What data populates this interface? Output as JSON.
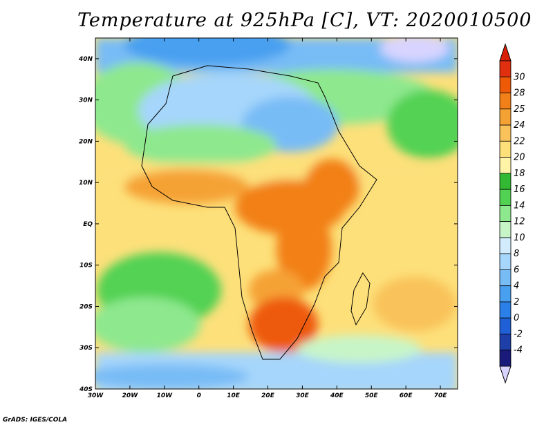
{
  "title": "Temperature at 925hPa [C], VT: 2020010500",
  "credit": "GrADS: IGES/COLA",
  "map": {
    "lon_range": [
      -30,
      75
    ],
    "lat_range": [
      -40,
      45
    ],
    "lon_ticks": [
      {
        "value": -30,
        "label": "30W"
      },
      {
        "value": -20,
        "label": "20W"
      },
      {
        "value": -10,
        "label": "10W"
      },
      {
        "value": 0,
        "label": "0"
      },
      {
        "value": 10,
        "label": "10E"
      },
      {
        "value": 20,
        "label": "20E"
      },
      {
        "value": 30,
        "label": "30E"
      },
      {
        "value": 40,
        "label": "40E"
      },
      {
        "value": 50,
        "label": "50E"
      },
      {
        "value": 60,
        "label": "60E"
      },
      {
        "value": 70,
        "label": "70E"
      }
    ],
    "lat_ticks": [
      {
        "value": 40,
        "label": "40N"
      },
      {
        "value": 30,
        "label": "30N"
      },
      {
        "value": 20,
        "label": "20N"
      },
      {
        "value": 10,
        "label": "10N"
      },
      {
        "value": 0,
        "label": "EQ"
      },
      {
        "value": -10,
        "label": "10S"
      },
      {
        "value": -20,
        "label": "20S"
      },
      {
        "value": -30,
        "label": "30S"
      },
      {
        "value": -40,
        "label": "40S"
      }
    ]
  },
  "colorbar": {
    "levels": [
      "-4",
      "-2",
      "0",
      "2",
      "4",
      "6",
      "8",
      "10",
      "12",
      "14",
      "16",
      "18",
      "20",
      "22",
      "24",
      "25",
      "28",
      "30"
    ],
    "colors": [
      "#1a1a7a",
      "#1f3fa8",
      "#1f60d6",
      "#2a80e8",
      "#4aa0f0",
      "#78bcf6",
      "#a6d6fb",
      "#d2ecfd",
      "#c8f5c8",
      "#8ee88e",
      "#52d252",
      "#32b832",
      "#fff3a8",
      "#fde07a",
      "#f9c25a",
      "#f5a234",
      "#f28018",
      "#ee5a08",
      "#e03010"
    ],
    "under_color": "#d8d4ff",
    "over_color": "#d82008"
  }
}
